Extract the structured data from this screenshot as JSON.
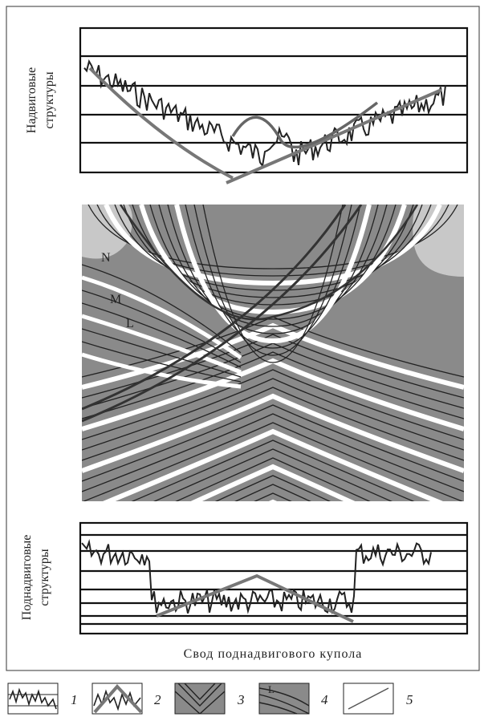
{
  "top_panel": {
    "label_lines": [
      "Надвиговые",
      "структуры"
    ]
  },
  "section": {
    "labels": [
      "N",
      "M",
      "L"
    ]
  },
  "bottom_panel": {
    "label_lines": [
      "Поднадвиговые",
      "структуры"
    ],
    "caption": "Свод поднадвигового купола"
  },
  "legend": {
    "items": [
      "1",
      "2",
      "3",
      "4",
      "5"
    ],
    "inset_label": "L"
  }
}
